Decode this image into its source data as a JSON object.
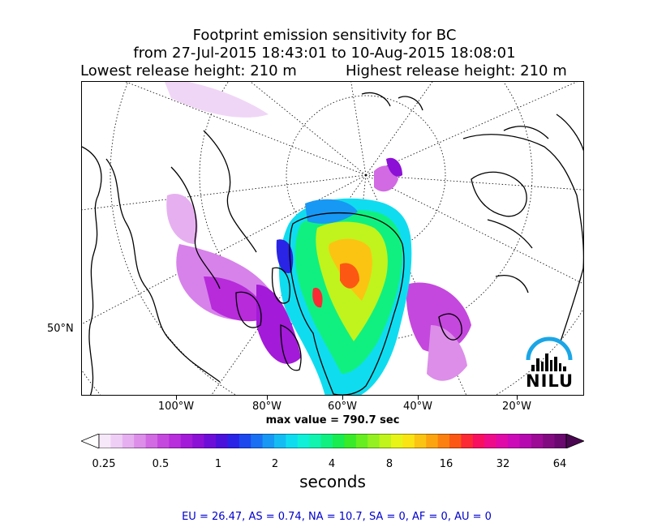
{
  "title": {
    "line1": "Footprint emission sensitivity for BC",
    "line2": "from 27-Jul-2015 18:43:01 to 10-Aug-2015 18:08:01",
    "release_low": "Lowest release height: 210 m",
    "release_high": "Highest release height: 210 m"
  },
  "map": {
    "projection": "polar stereographic (North Pole)",
    "lat_labels": [
      "50°N"
    ],
    "lon_labels": [
      "100°W",
      "80°W",
      "60°W",
      "40°W",
      "20°W"
    ],
    "max_value_text": "max value = 790.7 sec",
    "logo_text": "NILU"
  },
  "colorbar": {
    "tick_labels": [
      "0.25",
      "0.5",
      "1",
      "2",
      "4",
      "8",
      "16",
      "32",
      "64"
    ],
    "unit": "seconds",
    "colors": [
      "#f6e8f8",
      "#efcef5",
      "#e6b0f0",
      "#dc8ee9",
      "#d16ae3",
      "#c548de",
      "#b82ddc",
      "#a31ad8",
      "#8c10d6",
      "#6d0ed8",
      "#4b12dc",
      "#2a24e6",
      "#1c48ee",
      "#1a70f2",
      "#1798f4",
      "#14bcf4",
      "#10dcf0",
      "#10f0d8",
      "#10f4b0",
      "#10f080",
      "#18ec50",
      "#38ea28",
      "#66ee20",
      "#94f020",
      "#c0f41c",
      "#e8f418",
      "#fae414",
      "#fcc412",
      "#fca410",
      "#fc8010",
      "#fc5814",
      "#fc2a34",
      "#f81060",
      "#ee0c8a",
      "#e00aa8",
      "#cc0ab8",
      "#b60ab0",
      "#9c0a96",
      "#820a80",
      "#6a0870"
    ]
  },
  "footer": {
    "text": "EU = 26.47,  AS = 0.74,  NA = 10.7,  SA = 0,  AF = 0,  AU = 0"
  }
}
